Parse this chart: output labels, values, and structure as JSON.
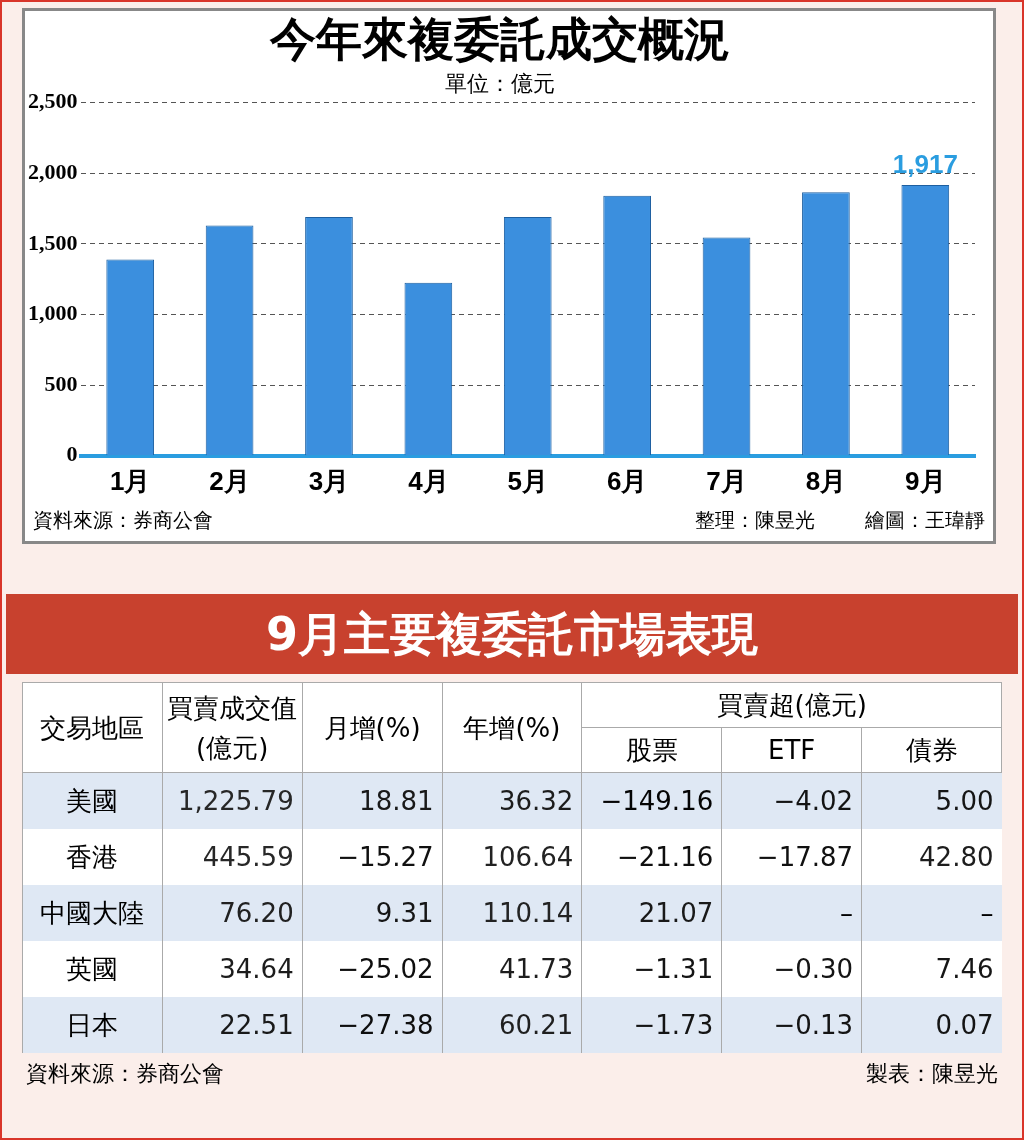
{
  "chart_data": [
    {
      "type": "bar",
      "title": "今年來複委託成交概況",
      "subtitle": "單位：億元",
      "categories": [
        "1月",
        "2月",
        "3月",
        "4月",
        "5月",
        "6月",
        "7月",
        "8月",
        "9月"
      ],
      "values": [
        1390,
        1630,
        1690,
        1225,
        1690,
        1840,
        1545,
        1865,
        1917
      ],
      "value_labels": [
        null,
        null,
        null,
        null,
        null,
        null,
        null,
        null,
        "1,917"
      ],
      "color": "#3b8fde",
      "ylim": [
        0,
        2500
      ],
      "yticks": [
        {
          "value": 0,
          "label": "0"
        },
        {
          "value": 500,
          "label": "500"
        },
        {
          "value": 1000,
          "label": "1,000"
        },
        {
          "value": 1500,
          "label": "1,500"
        },
        {
          "value": 2000,
          "label": "2,000"
        },
        {
          "value": 2500,
          "label": "2,500"
        }
      ],
      "grid": "y",
      "legend": false,
      "annotations": [
        "資料來源：券商公會",
        "整理：陳昱光",
        "繪圖：王瑋靜"
      ]
    },
    {
      "type": "heatmap",
      "title": "9月主要複委託市場表現",
      "ylabel": "交易地區",
      "xlabel": "買賣超(億元)",
      "categories": [
        "買賣成交值(億元)",
        "月增(%)",
        "年增(%)",
        "股票",
        "ETF",
        "債券"
      ],
      "y_categories": [
        "美國",
        "香港",
        "中國大陸",
        "英國",
        "日本"
      ],
      "cells": [
        [
          1225.79,
          18.81,
          36.32,
          -149.16,
          -4.02,
          5.0
        ],
        [
          445.59,
          -15.27,
          106.64,
          -21.16,
          -17.87,
          42.8
        ],
        [
          76.2,
          9.31,
          110.14,
          21.07,
          null,
          null
        ],
        [
          34.64,
          -25.02,
          41.73,
          -1.31,
          -0.3,
          7.46
        ],
        [
          22.51,
          -27.38,
          60.21,
          -1.73,
          -0.13,
          0.07
        ]
      ],
      "cell_labels": [
        [
          "1,225.79",
          "18.81",
          "36.32",
          "−149.16",
          "−4.02",
          "5.00"
        ],
        [
          "445.59",
          "−15.27",
          "106.64",
          "−21.16",
          "−17.87",
          "42.80"
        ],
        [
          "76.20",
          "9.31",
          "110.14",
          "21.07",
          "–",
          "–"
        ],
        [
          "34.64",
          "−25.02",
          "41.73",
          "−1.31",
          "−0.30",
          "7.46"
        ],
        [
          "22.51",
          "−27.38",
          "60.21",
          "−1.73",
          "−0.13",
          "0.07"
        ]
      ],
      "annotations": [
        "資料來源：券商公會",
        "製表：陳昱光"
      ]
    }
  ]
}
